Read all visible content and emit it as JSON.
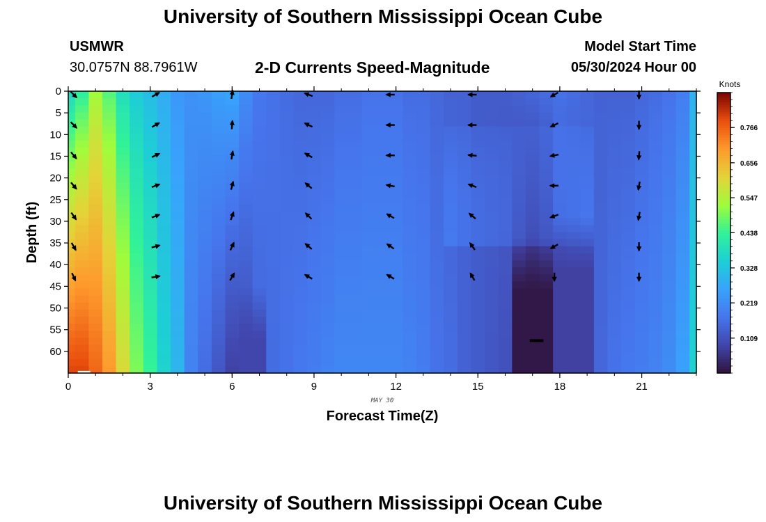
{
  "header": {
    "title": "University of Southern Mississippi Ocean Cube",
    "station": "USMWR",
    "coordinates": "30.0757N  88.7961W",
    "subtitle": "2-D Currents Speed-Magnitude",
    "model_start_label": "Model Start Time",
    "model_start_value": "05/30/2024 Hour 00"
  },
  "footer": {
    "title": "University of Southern Mississippi Ocean Cube"
  },
  "chart_data": {
    "type": "heatmap",
    "xlabel": "Forecast Time(Z)",
    "ylabel": "Depth (ft)",
    "date_label": "MAY 30",
    "xlim": [
      0,
      23
    ],
    "ylim": [
      0,
      65
    ],
    "x_ticks": [
      0,
      3,
      6,
      9,
      12,
      15,
      18,
      21
    ],
    "y_ticks": [
      0,
      5,
      10,
      15,
      20,
      25,
      30,
      35,
      40,
      45,
      50,
      55,
      60
    ],
    "colorbar": {
      "label": "Knots",
      "min": 0.0,
      "max": 0.875,
      "ticks": [
        0.109,
        0.219,
        0.328,
        0.438,
        0.547,
        0.656,
        0.766
      ],
      "colormap": "turbo"
    },
    "hours": [
      0,
      0.5,
      1,
      1.5,
      2,
      2.5,
      3,
      3.5,
      4,
      4.5,
      5,
      5.5,
      6,
      6.5,
      7,
      7.5,
      8,
      8.5,
      9,
      9.5,
      10,
      10.5,
      11,
      11.5,
      12,
      12.5,
      13,
      13.5,
      14,
      14.5,
      15,
      15.5,
      16,
      16.5,
      17,
      17.5,
      18,
      18.5,
      19,
      19.5,
      20,
      20.5,
      21,
      21.5,
      22,
      22.5,
      23
    ],
    "surface_speed": [
      0.36,
      0.42,
      0.52,
      0.46,
      0.38,
      0.34,
      0.31,
      0.28,
      0.24,
      0.23,
      0.24,
      0.26,
      0.27,
      0.22,
      0.18,
      0.17,
      0.16,
      0.15,
      0.15,
      0.15,
      0.16,
      0.16,
      0.17,
      0.17,
      0.17,
      0.16,
      0.16,
      0.15,
      0.14,
      0.14,
      0.13,
      0.13,
      0.13,
      0.14,
      0.15,
      0.16,
      0.17,
      0.16,
      0.15,
      0.14,
      0.14,
      0.14,
      0.15,
      0.16,
      0.17,
      0.19,
      0.29
    ],
    "bottom_speed": [
      0.8,
      0.8,
      0.76,
      0.7,
      0.6,
      0.5,
      0.44,
      0.36,
      0.3,
      0.2,
      0.16,
      0.12,
      0.08,
      0.1,
      0.15,
      0.16,
      0.17,
      0.18,
      0.19,
      0.2,
      0.21,
      0.21,
      0.21,
      0.21,
      0.21,
      0.2,
      0.19,
      0.17,
      0.16,
      0.14,
      0.13,
      0.12,
      0.11,
      0.06,
      0.02,
      0.04,
      0.1,
      0.12,
      0.14,
      0.15,
      0.17,
      0.18,
      0.19,
      0.2,
      0.22,
      0.26,
      0.36
    ],
    "vectors": {
      "hours": [
        0.2,
        3.2,
        6.0,
        8.8,
        11.8,
        14.8,
        17.8,
        20.9
      ],
      "depths": [
        0,
        7,
        14,
        21,
        28,
        35,
        42
      ],
      "directions_deg": [
        [
          -45,
          -45,
          -50,
          -50,
          -55,
          -60,
          -65
        ],
        [
          30,
          30,
          25,
          20,
          20,
          15,
          10
        ],
        [
          80,
          85,
          80,
          75,
          70,
          65,
          60
        ],
        [
          160,
          155,
          150,
          140,
          135,
          140,
          150
        ],
        [
          180,
          180,
          180,
          170,
          150,
          145,
          150
        ],
        [
          180,
          180,
          175,
          160,
          140,
          125,
          120
        ],
        [
          210,
          205,
          190,
          180,
          200,
          210,
          270
        ],
        [
          270,
          270,
          265,
          260,
          260,
          270,
          270
        ]
      ]
    }
  }
}
